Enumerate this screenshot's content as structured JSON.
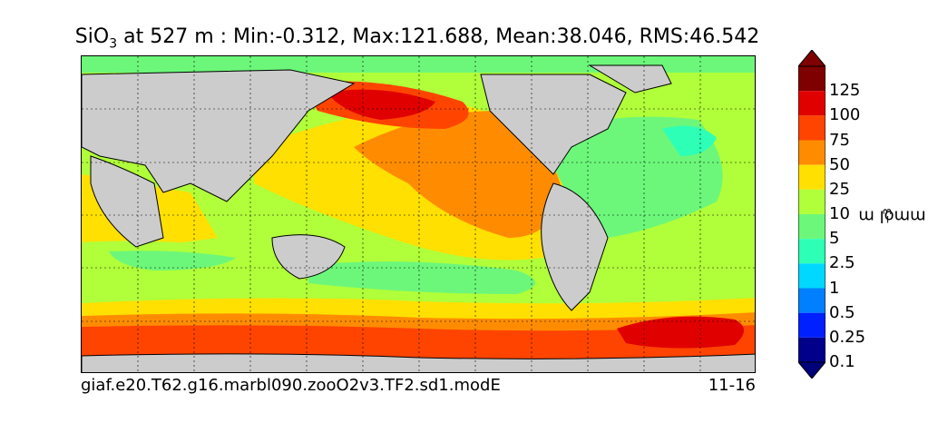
{
  "title": {
    "species": "SiO",
    "subscript": "3",
    "rest": " at 527 m : Min:-0.312, Max:121.688, Mean:38.046, RMS:46.542"
  },
  "caption": {
    "left": "giaf.e20.T62.g16.marbl090.zooO2v3.TF2.sd1.modE",
    "right": "11-16"
  },
  "colorbar": {
    "units": "mmol m",
    "units_exp": "−3",
    "labels": [
      "125",
      "100",
      "75",
      "50",
      "25",
      "10",
      "5",
      "2.5",
      "1",
      "0.5",
      "0.25",
      "0.1"
    ],
    "colors": [
      "#7f0000",
      "#e00000",
      "#ff4400",
      "#ff8c00",
      "#ffe000",
      "#b0ff3a",
      "#6cf77a",
      "#2effb6",
      "#00d8ff",
      "#0080ff",
      "#0020ff",
      "#00008a"
    ],
    "extend_max_color": "#7f0000",
    "extend_min_color": "#00007a",
    "land_color": "#cccccc",
    "coast_color": "#000000",
    "ice_color": "#ffffff"
  }
}
